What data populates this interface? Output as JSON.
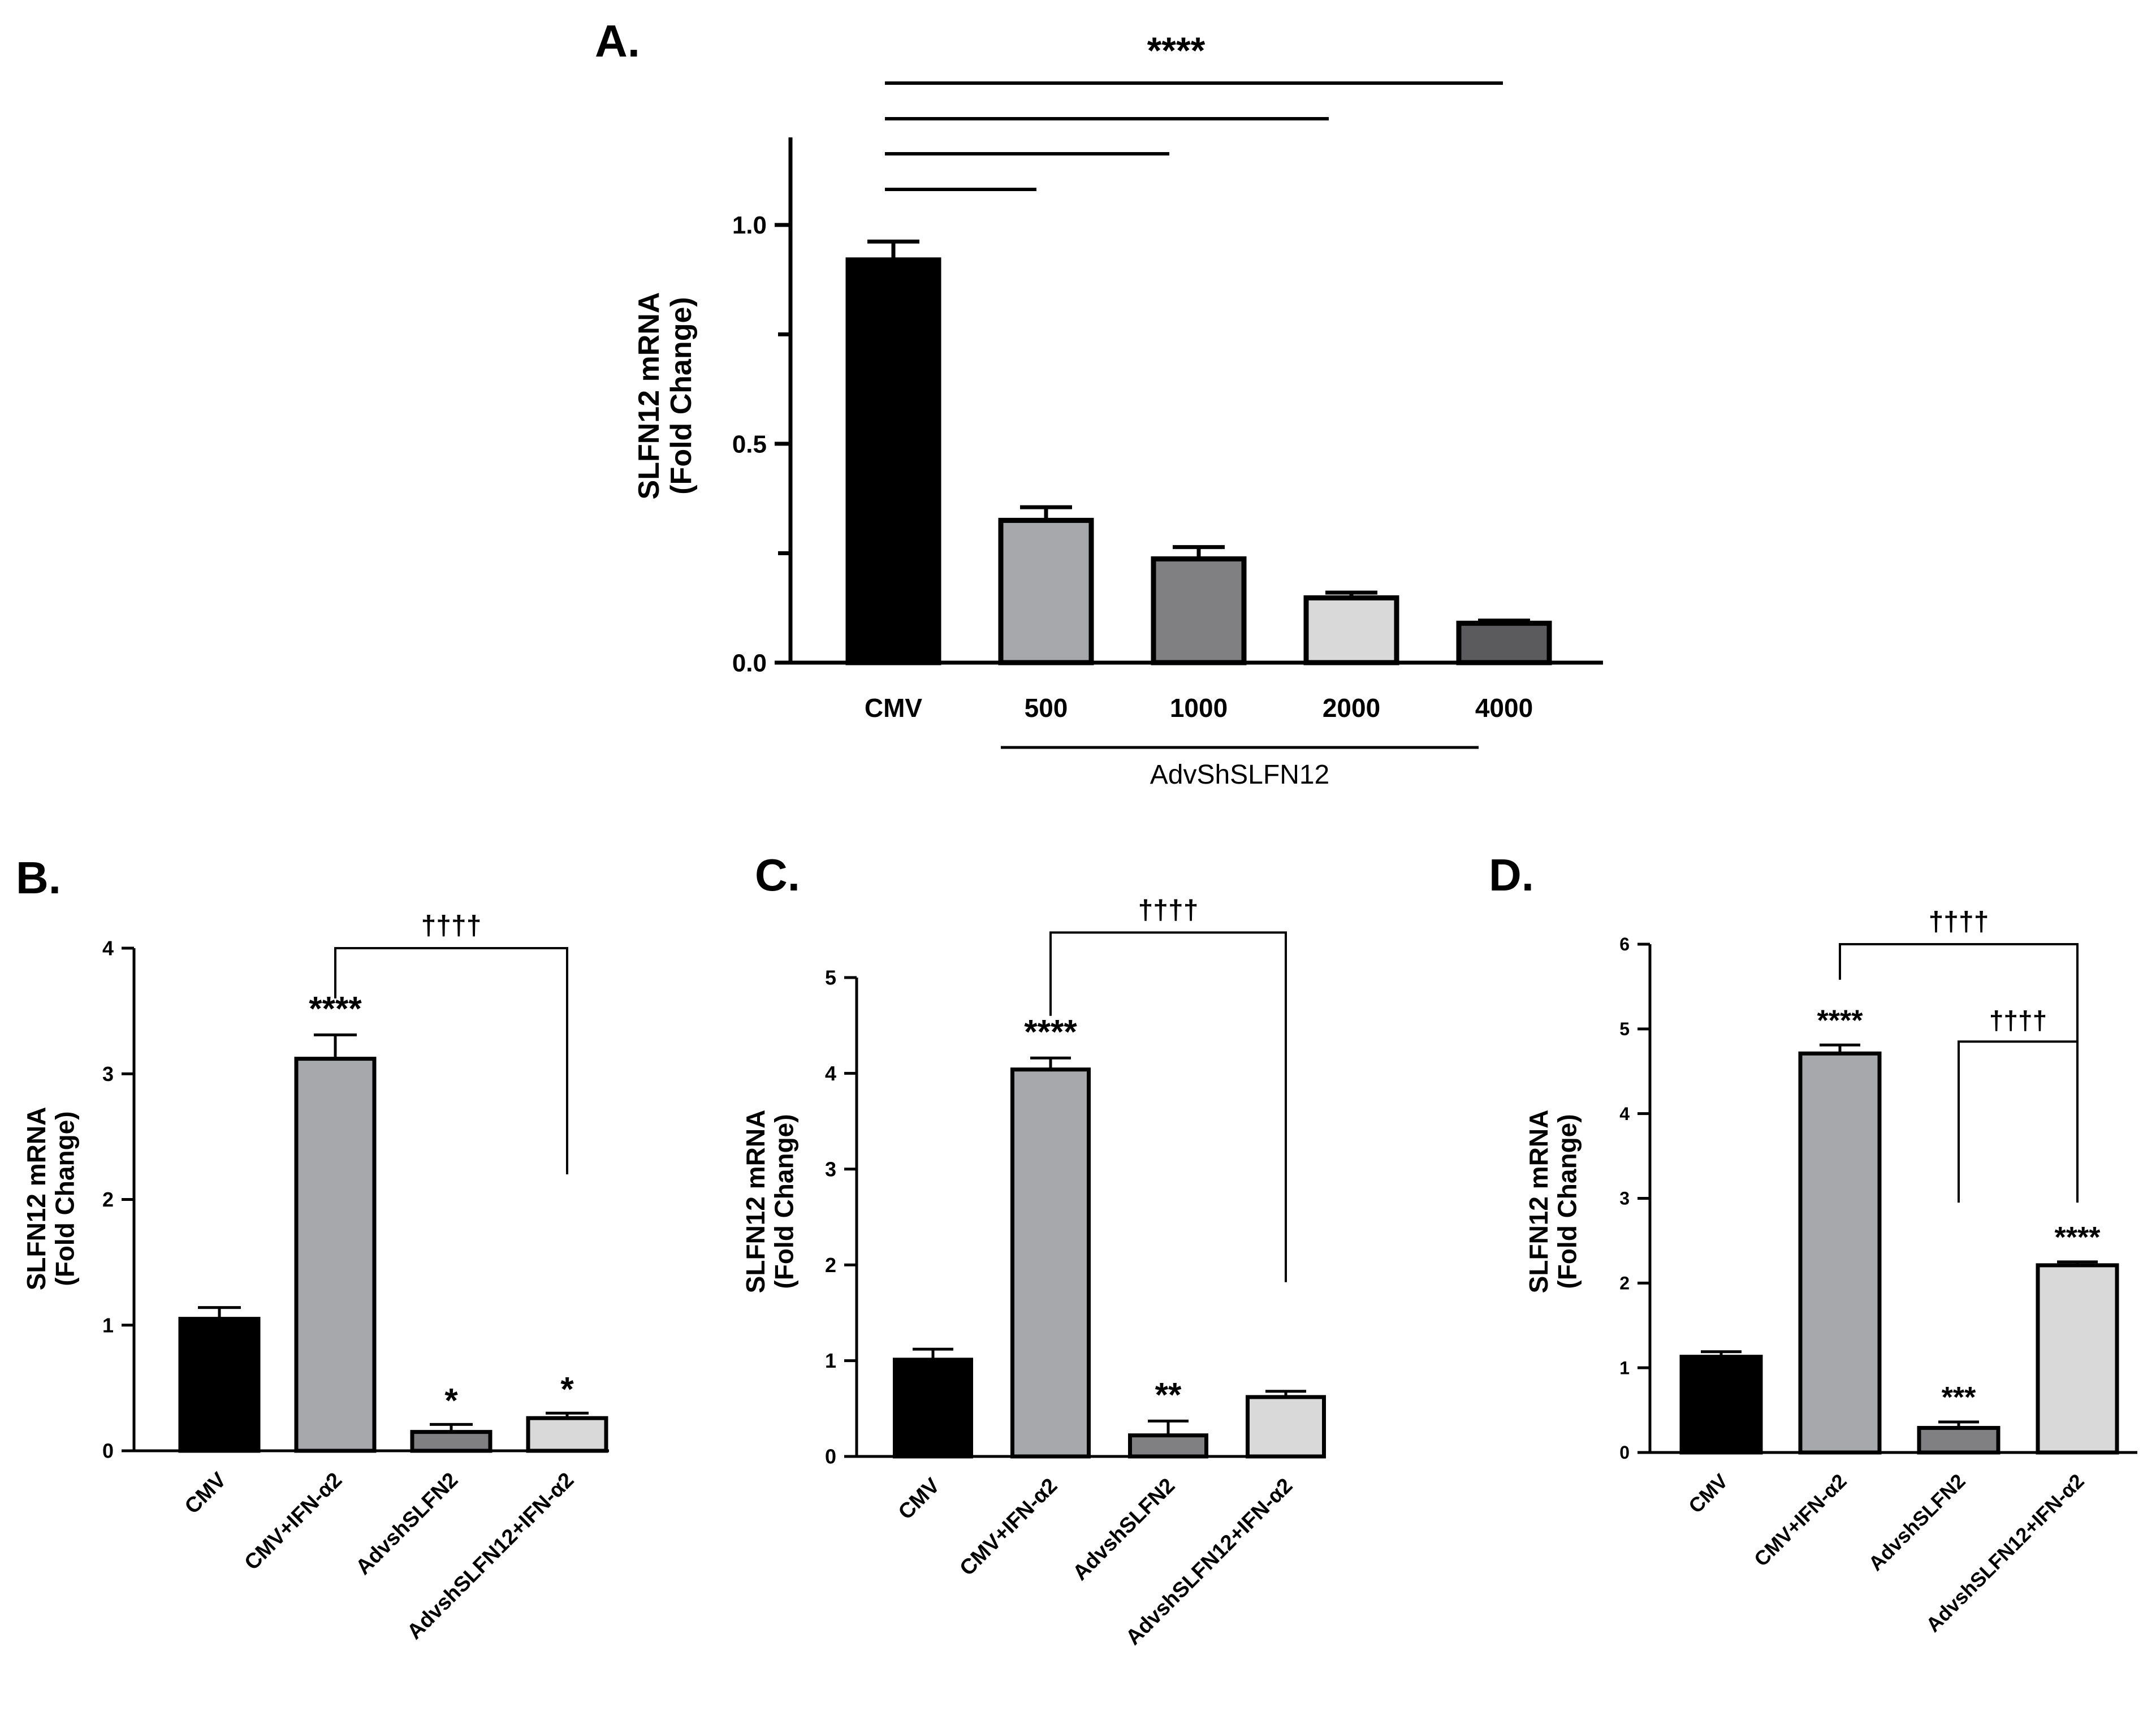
{
  "chart_data": [
    {
      "panel": "A.",
      "type": "bar",
      "title": "",
      "ylabel_line1": "SLFN12 mRNA",
      "ylabel_line2": "(Fold Change)",
      "ylim": [
        0,
        1.2
      ],
      "ticks": [
        0.0,
        0.5,
        1.0
      ],
      "tick_labels": [
        "0.0",
        "0.5",
        "1.0"
      ],
      "categories": [
        "CMV",
        "500",
        "1000",
        "2000",
        "4000"
      ],
      "values": [
        0.92,
        0.325,
        0.237,
        0.148,
        0.09
      ],
      "errors": [
        0.042,
        0.03,
        0.027,
        0.012,
        0.006
      ],
      "colors": [
        "#000000",
        "#a7a8ab",
        "#808083",
        "#d9d9d9",
        "#5b5b5d"
      ],
      "group_label": "AdvShSLFN12",
      "group_span": [
        1,
        4
      ],
      "significance": "****",
      "sig_lines": [
        {
          "from": 0,
          "to": 1
        },
        {
          "from": 0,
          "to": 2
        },
        {
          "from": 0,
          "to": 3
        },
        {
          "from": 0,
          "to": 4
        }
      ],
      "bar_annotations": [
        "",
        "",
        "",
        "",
        ""
      ]
    },
    {
      "panel": "B.",
      "type": "bar",
      "ylabel_line1": "SLFN12 mRNA",
      "ylabel_line2": "(Fold Change)",
      "ylim": [
        0,
        4
      ],
      "ticks": [
        0,
        1,
        2,
        3,
        4
      ],
      "tick_labels": [
        "0",
        "1",
        "2",
        "3",
        "4"
      ],
      "categories": [
        "CMV",
        "CMV+IFN-α2",
        "AdvshSLFN2",
        "AdvshSLFN12+IFN-α2"
      ],
      "values": [
        1.05,
        3.12,
        0.15,
        0.26
      ],
      "errors": [
        0.09,
        0.19,
        0.06,
        0.04
      ],
      "colors": [
        "#000000",
        "#a7a8ab",
        "#808083",
        "#d9d9d9"
      ],
      "bar_annotations": [
        "",
        "****",
        "*",
        "*"
      ],
      "brackets": [
        {
          "from": 1,
          "to": 3,
          "top": 4.0,
          "left_end": 3.6,
          "right_end": 2.2,
          "label": "††††"
        }
      ]
    },
    {
      "panel": "C.",
      "type": "bar",
      "ylabel_line1": "SLFN12 mRNA",
      "ylabel_line2": "(Fold Change)",
      "ylim": [
        0,
        5
      ],
      "ticks": [
        0,
        1,
        2,
        3,
        4,
        5
      ],
      "tick_labels": [
        "0",
        "1",
        "2",
        "3",
        "4",
        "5"
      ],
      "categories": [
        "CMV",
        "CMV+IFN-α2",
        "AdvshSLFN2",
        "AdvshSLFN12+IFN-α2"
      ],
      "values": [
        1.01,
        4.04,
        0.22,
        0.62
      ],
      "errors": [
        0.11,
        0.12,
        0.15,
        0.06
      ],
      "colors": [
        "#000000",
        "#a7a8ab",
        "#808083",
        "#d9d9d9"
      ],
      "bar_annotations": [
        "",
        "****",
        "**",
        ""
      ],
      "brackets": [
        {
          "from": 1,
          "to": 3,
          "top": 5.47,
          "left_end": 4.6,
          "right_end": 1.82,
          "label": "††††"
        }
      ]
    },
    {
      "panel": "D.",
      "type": "bar",
      "ylabel_line1": "SLFN12 mRNA",
      "ylabel_line2": "(Fold Change)",
      "ylim": [
        0,
        6
      ],
      "ticks": [
        0,
        1,
        2,
        3,
        4,
        5,
        6
      ],
      "tick_labels": [
        "0",
        "1",
        "2",
        "3",
        "4",
        "5",
        "6"
      ],
      "categories": [
        "CMV",
        "CMV+IFN-α2",
        "AdvshSLFN2",
        "AdvshSLFN12+IFN-α2"
      ],
      "values": [
        1.13,
        4.71,
        0.29,
        2.21
      ],
      "errors": [
        0.06,
        0.1,
        0.07,
        0.04
      ],
      "colors": [
        "#000000",
        "#a7a8ab",
        "#808083",
        "#d9d9d9"
      ],
      "bar_annotations": [
        "",
        "****",
        "***",
        "****"
      ],
      "brackets": [
        {
          "from": 1,
          "to": 3,
          "top": 6.0,
          "left_end": 5.58,
          "right_end": 2.95,
          "label": "††††"
        },
        {
          "from": 2,
          "to": 3,
          "top": 4.85,
          "left_end": 2.95,
          "right_end": 2.95,
          "label": "††††"
        }
      ]
    }
  ]
}
